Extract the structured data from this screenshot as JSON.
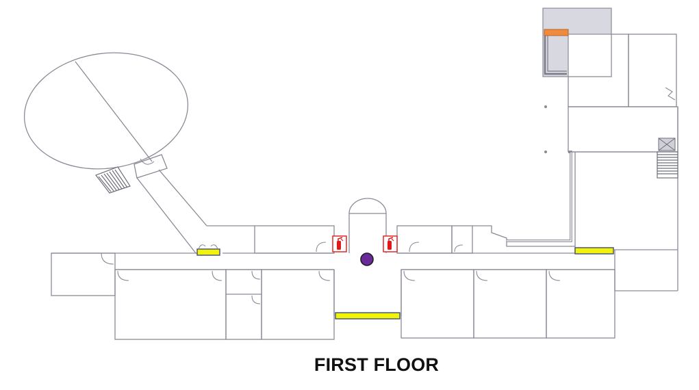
{
  "title": "FIRST FLOOR",
  "colors": {
    "wall": "#8a8a98",
    "exit_marker": "#f2f20a",
    "exit_marker_border": "#3c5078",
    "assembly_marker": "#f08a3c",
    "you_are_here": "#6a2a9a",
    "extinguisher": "#e01818",
    "elevator_shaft_fill": "#d8d8e0"
  },
  "legend_items": {
    "extinguisher_icon": "fire-extinguisher-icon",
    "location_icon": "you-are-here-icon",
    "exit_icon": "exit-marker-icon",
    "assembly_icon": "assembly-point-marker-icon"
  }
}
